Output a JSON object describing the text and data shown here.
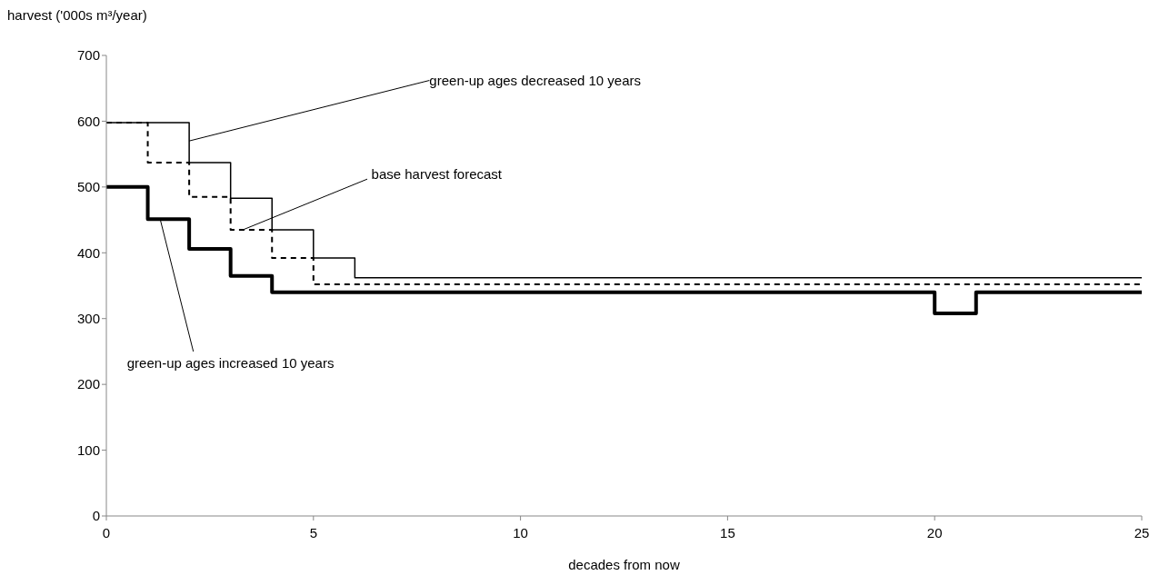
{
  "chart_data": {
    "type": "step",
    "xlabel": "decades from now",
    "ylabel": "harvest ('000s m³/year)",
    "x": [
      0,
      1,
      2,
      3,
      4,
      5,
      6,
      7,
      8,
      9,
      10,
      11,
      12,
      13,
      14,
      15,
      16,
      17,
      18,
      19,
      20,
      21,
      22,
      23,
      24,
      25
    ],
    "series": [
      {
        "color": "#000000",
        "line_style": "solid",
        "values": [
          598,
          598,
          537,
          483,
          435,
          392,
          362,
          362,
          362,
          362,
          362,
          362,
          362,
          362,
          362,
          362,
          362,
          362,
          362,
          362,
          362,
          362,
          362,
          362,
          362,
          362
        ]
      },
      {
        "color": "#000000",
        "line_style": "dashed",
        "values": [
          598,
          537,
          485,
          435,
          392,
          352,
          352,
          352,
          352,
          352,
          352,
          352,
          352,
          352,
          352,
          352,
          352,
          352,
          352,
          352,
          352,
          352,
          352,
          352,
          352,
          352
        ]
      },
      {
        "color": "#000000",
        "line_style": "solid",
        "values": [
          500,
          451,
          406,
          365,
          340,
          340,
          340,
          340,
          340,
          340,
          340,
          340,
          340,
          340,
          340,
          340,
          340,
          340,
          340,
          340,
          308,
          340,
          340,
          340,
          340,
          340
        ]
      }
    ],
    "annotations": [
      {
        "text": "green-up ages decreased 10 years",
        "x": 2,
        "y": 570
      },
      {
        "text": "base harvest forecast",
        "x": 3.3,
        "y": 435
      },
      {
        "text": "green-up ages increased 10 years",
        "x": 1.3,
        "y": 451
      }
    ],
    "xlim": [
      0,
      25
    ],
    "xticks": [
      0,
      5,
      10,
      15,
      20,
      25
    ],
    "ylim": [
      0,
      700
    ],
    "yticks": [
      0,
      100,
      200,
      300,
      400,
      500,
      600,
      700
    ],
    "grid": false,
    "legend": false,
    "marker": "none"
  }
}
